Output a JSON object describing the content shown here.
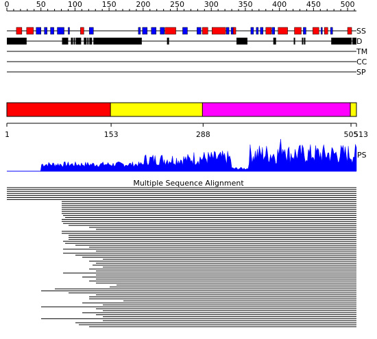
{
  "sequence_length": 513,
  "ruler": {
    "ticks": [
      0,
      50,
      100,
      150,
      200,
      250,
      300,
      350,
      400,
      450,
      500
    ]
  },
  "tracks": [
    {
      "key": "SS",
      "label": "SS"
    },
    {
      "key": "D",
      "label": "D"
    },
    {
      "key": "TM",
      "label": "TM"
    },
    {
      "key": "CC",
      "label": "CC"
    },
    {
      "key": "SP",
      "label": "SP"
    }
  ],
  "colors": {
    "helix": "#ff0000",
    "strand": "#0000ff",
    "disorder": "#000000",
    "domain_1": "#ff0000",
    "domain_2": "#ffff00",
    "domain_3": "#ff00ff",
    "domain_4": "#ffff00",
    "psipred": "#0000ff"
  },
  "secondary_structure": {
    "helix": [
      [
        14,
        22
      ],
      [
        29,
        39
      ],
      [
        108,
        113
      ],
      [
        232,
        248
      ],
      [
        287,
        295
      ],
      [
        301,
        321
      ],
      [
        332,
        336
      ],
      [
        380,
        388
      ],
      [
        398,
        412
      ],
      [
        422,
        432
      ],
      [
        449,
        458
      ],
      [
        466,
        471
      ],
      [
        500,
        506
      ]
    ],
    "strand": [
      [
        43,
        50
      ],
      [
        55,
        59
      ],
      [
        64,
        69
      ],
      [
        74,
        84
      ],
      [
        90,
        92
      ],
      [
        121,
        127
      ],
      [
        193,
        196
      ],
      [
        199,
        206
      ],
      [
        212,
        219
      ],
      [
        225,
        231
      ],
      [
        258,
        265
      ],
      [
        279,
        285
      ],
      [
        322,
        326
      ],
      [
        329,
        332
      ],
      [
        358,
        362
      ],
      [
        366,
        369
      ],
      [
        372,
        376
      ],
      [
        389,
        393
      ],
      [
        435,
        439
      ],
      [
        461,
        463
      ],
      [
        475,
        478
      ]
    ]
  },
  "disorder": [
    [
      0,
      29
    ],
    [
      81,
      90
    ],
    [
      94,
      97
    ],
    [
      98,
      100
    ],
    [
      101,
      109
    ],
    [
      113,
      117
    ],
    [
      118,
      120
    ],
    [
      121,
      125
    ],
    [
      127,
      198
    ],
    [
      235,
      238
    ],
    [
      337,
      353
    ],
    [
      391,
      395
    ],
    [
      421,
      423
    ],
    [
      433,
      435
    ],
    [
      436,
      438
    ],
    [
      476,
      506
    ],
    [
      507,
      513
    ]
  ],
  "domains": {
    "bounds": [
      1,
      153,
      288,
      505,
      513
    ],
    "labels": [
      "1",
      "153",
      "288",
      "505",
      "513"
    ]
  },
  "msa": {
    "title": "Multiple Sequence Alignment"
  },
  "psipred_label": "PS"
}
